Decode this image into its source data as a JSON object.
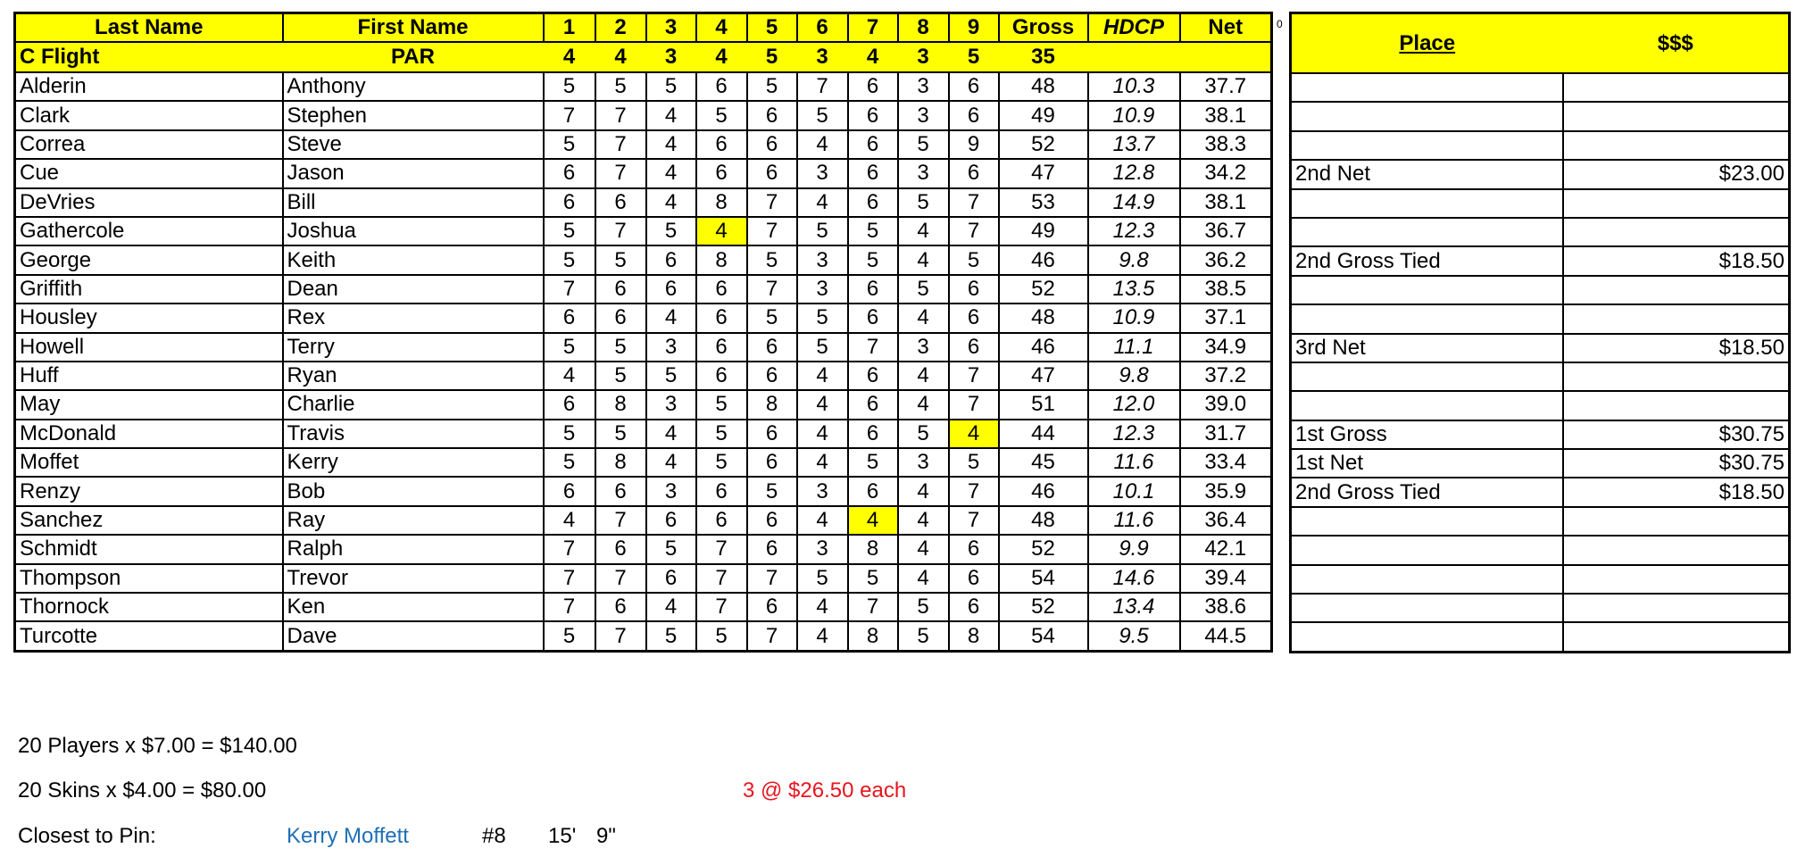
{
  "headers": {
    "last_name": "Last Name",
    "first_name": "First Name",
    "holes": [
      "1",
      "2",
      "3",
      "4",
      "5",
      "6",
      "7",
      "8",
      "9"
    ],
    "gross": "Gross",
    "hdcp": "HDCP",
    "net": "Net"
  },
  "par_row": {
    "flight": "C Flight",
    "label": "PAR",
    "holes": [
      "4",
      "4",
      "3",
      "4",
      "5",
      "3",
      "4",
      "3",
      "5"
    ],
    "gross": "35"
  },
  "marker": "0",
  "players": [
    {
      "last": "Alderin",
      "first": "Anthony",
      "scores": [
        "5",
        "5",
        "5",
        "6",
        "5",
        "7",
        "6",
        "3",
        "6"
      ],
      "gross": "48",
      "hdcp": "10.3",
      "net": "37.7",
      "highlight": []
    },
    {
      "last": "Clark",
      "first": "Stephen",
      "scores": [
        "7",
        "7",
        "4",
        "5",
        "6",
        "5",
        "6",
        "3",
        "6"
      ],
      "gross": "49",
      "hdcp": "10.9",
      "net": "38.1",
      "highlight": []
    },
    {
      "last": "Correa",
      "first": "Steve",
      "scores": [
        "5",
        "7",
        "4",
        "6",
        "6",
        "4",
        "6",
        "5",
        "9"
      ],
      "gross": "52",
      "hdcp": "13.7",
      "net": "38.3",
      "highlight": []
    },
    {
      "last": "Cue",
      "first": "Jason",
      "scores": [
        "6",
        "7",
        "4",
        "6",
        "6",
        "3",
        "6",
        "3",
        "6"
      ],
      "gross": "47",
      "hdcp": "12.8",
      "net": "34.2",
      "highlight": []
    },
    {
      "last": "DeVries",
      "first": "Bill",
      "scores": [
        "6",
        "6",
        "4",
        "8",
        "7",
        "4",
        "6",
        "5",
        "7"
      ],
      "gross": "53",
      "hdcp": "14.9",
      "net": "38.1",
      "highlight": []
    },
    {
      "last": "Gathercole",
      "first": "Joshua",
      "scores": [
        "5",
        "7",
        "5",
        "4",
        "7",
        "5",
        "5",
        "4",
        "7"
      ],
      "gross": "49",
      "hdcp": "12.3",
      "net": "36.7",
      "highlight": [
        4
      ]
    },
    {
      "last": "George",
      "first": "Keith",
      "scores": [
        "5",
        "5",
        "6",
        "8",
        "5",
        "3",
        "5",
        "4",
        "5"
      ],
      "gross": "46",
      "hdcp": "9.8",
      "net": "36.2",
      "highlight": []
    },
    {
      "last": "Griffith",
      "first": "Dean",
      "scores": [
        "7",
        "6",
        "6",
        "6",
        "7",
        "3",
        "6",
        "5",
        "6"
      ],
      "gross": "52",
      "hdcp": "13.5",
      "net": "38.5",
      "highlight": []
    },
    {
      "last": "Housley",
      "first": "Rex",
      "scores": [
        "6",
        "6",
        "4",
        "6",
        "5",
        "5",
        "6",
        "4",
        "6"
      ],
      "gross": "48",
      "hdcp": "10.9",
      "net": "37.1",
      "highlight": []
    },
    {
      "last": "Howell",
      "first": "Terry",
      "scores": [
        "5",
        "5",
        "3",
        "6",
        "6",
        "5",
        "7",
        "3",
        "6"
      ],
      "gross": "46",
      "hdcp": "11.1",
      "net": "34.9",
      "highlight": []
    },
    {
      "last": "Huff",
      "first": "Ryan",
      "scores": [
        "4",
        "5",
        "5",
        "6",
        "6",
        "4",
        "6",
        "4",
        "7"
      ],
      "gross": "47",
      "hdcp": "9.8",
      "net": "37.2",
      "highlight": []
    },
    {
      "last": "May",
      "first": "Charlie",
      "scores": [
        "6",
        "8",
        "3",
        "5",
        "8",
        "4",
        "6",
        "4",
        "7"
      ],
      "gross": "51",
      "hdcp": "12.0",
      "net": "39.0",
      "highlight": []
    },
    {
      "last": "McDonald",
      "first": "Travis",
      "scores": [
        "5",
        "5",
        "4",
        "5",
        "6",
        "4",
        "6",
        "5",
        "4"
      ],
      "gross": "44",
      "hdcp": "12.3",
      "net": "31.7",
      "highlight": [
        9
      ]
    },
    {
      "last": "Moffet",
      "first": "Kerry",
      "scores": [
        "5",
        "8",
        "4",
        "5",
        "6",
        "4",
        "5",
        "3",
        "5"
      ],
      "gross": "45",
      "hdcp": "11.6",
      "net": "33.4",
      "highlight": []
    },
    {
      "last": "Renzy",
      "first": "Bob",
      "scores": [
        "6",
        "6",
        "3",
        "6",
        "5",
        "3",
        "6",
        "4",
        "7"
      ],
      "gross": "46",
      "hdcp": "10.1",
      "net": "35.9",
      "highlight": []
    },
    {
      "last": "Sanchez",
      "first": "Ray",
      "scores": [
        "4",
        "7",
        "6",
        "6",
        "6",
        "4",
        "4",
        "4",
        "7"
      ],
      "gross": "48",
      "hdcp": "11.6",
      "net": "36.4",
      "highlight": [
        7
      ]
    },
    {
      "last": "Schmidt",
      "first": "Ralph",
      "scores": [
        "7",
        "6",
        "5",
        "7",
        "6",
        "3",
        "8",
        "4",
        "6"
      ],
      "gross": "52",
      "hdcp": "9.9",
      "net": "42.1",
      "highlight": []
    },
    {
      "last": "Thompson",
      "first": "Trevor",
      "scores": [
        "7",
        "7",
        "6",
        "7",
        "7",
        "5",
        "5",
        "4",
        "6"
      ],
      "gross": "54",
      "hdcp": "14.6",
      "net": "39.4",
      "highlight": []
    },
    {
      "last": "Thornock",
      "first": "Ken",
      "scores": [
        "7",
        "6",
        "4",
        "7",
        "6",
        "4",
        "7",
        "5",
        "6"
      ],
      "gross": "52",
      "hdcp": "13.4",
      "net": "38.6",
      "highlight": []
    },
    {
      "last": "Turcotte",
      "first": "Dave",
      "scores": [
        "5",
        "7",
        "5",
        "5",
        "7",
        "4",
        "8",
        "5",
        "8"
      ],
      "gross": "54",
      "hdcp": "9.5",
      "net": "44.5",
      "highlight": []
    }
  ],
  "payout": {
    "place_header": "Place",
    "money_header": "$$$",
    "rows": [
      {
        "place": "",
        "amount": ""
      },
      {
        "place": "",
        "amount": ""
      },
      {
        "place": "",
        "amount": ""
      },
      {
        "place": "2nd Net",
        "amount": "$23.00"
      },
      {
        "place": "",
        "amount": ""
      },
      {
        "place": "",
        "amount": ""
      },
      {
        "place": "2nd Gross Tied",
        "amount": "$18.50"
      },
      {
        "place": "",
        "amount": ""
      },
      {
        "place": "",
        "amount": ""
      },
      {
        "place": "3rd Net",
        "amount": "$18.50"
      },
      {
        "place": "",
        "amount": ""
      },
      {
        "place": "",
        "amount": ""
      },
      {
        "place": "1st Gross",
        "amount": "$30.75"
      },
      {
        "place": "1st Net",
        "amount": "$30.75"
      },
      {
        "place": "2nd Gross Tied",
        "amount": "$18.50"
      },
      {
        "place": "",
        "amount": ""
      },
      {
        "place": "",
        "amount": ""
      },
      {
        "place": "",
        "amount": ""
      },
      {
        "place": "",
        "amount": ""
      },
      {
        "place": "",
        "amount": ""
      }
    ]
  },
  "footer": {
    "players_line": "20 Players x $7.00 = $140.00",
    "skins_line": "20 Skins x $4.00 = $80.00",
    "skins_each": "3  @  $26.50 each",
    "ctp_label": "Closest to Pin:",
    "ctp_name": "Kerry Moffett",
    "ctp_hole": "#8",
    "ctp_feet": "15'",
    "ctp_inches": "9\""
  },
  "colors": {
    "highlight": "#ffff00",
    "skins_text": "#e8141c",
    "ctp_name": "#1f6fb5"
  }
}
